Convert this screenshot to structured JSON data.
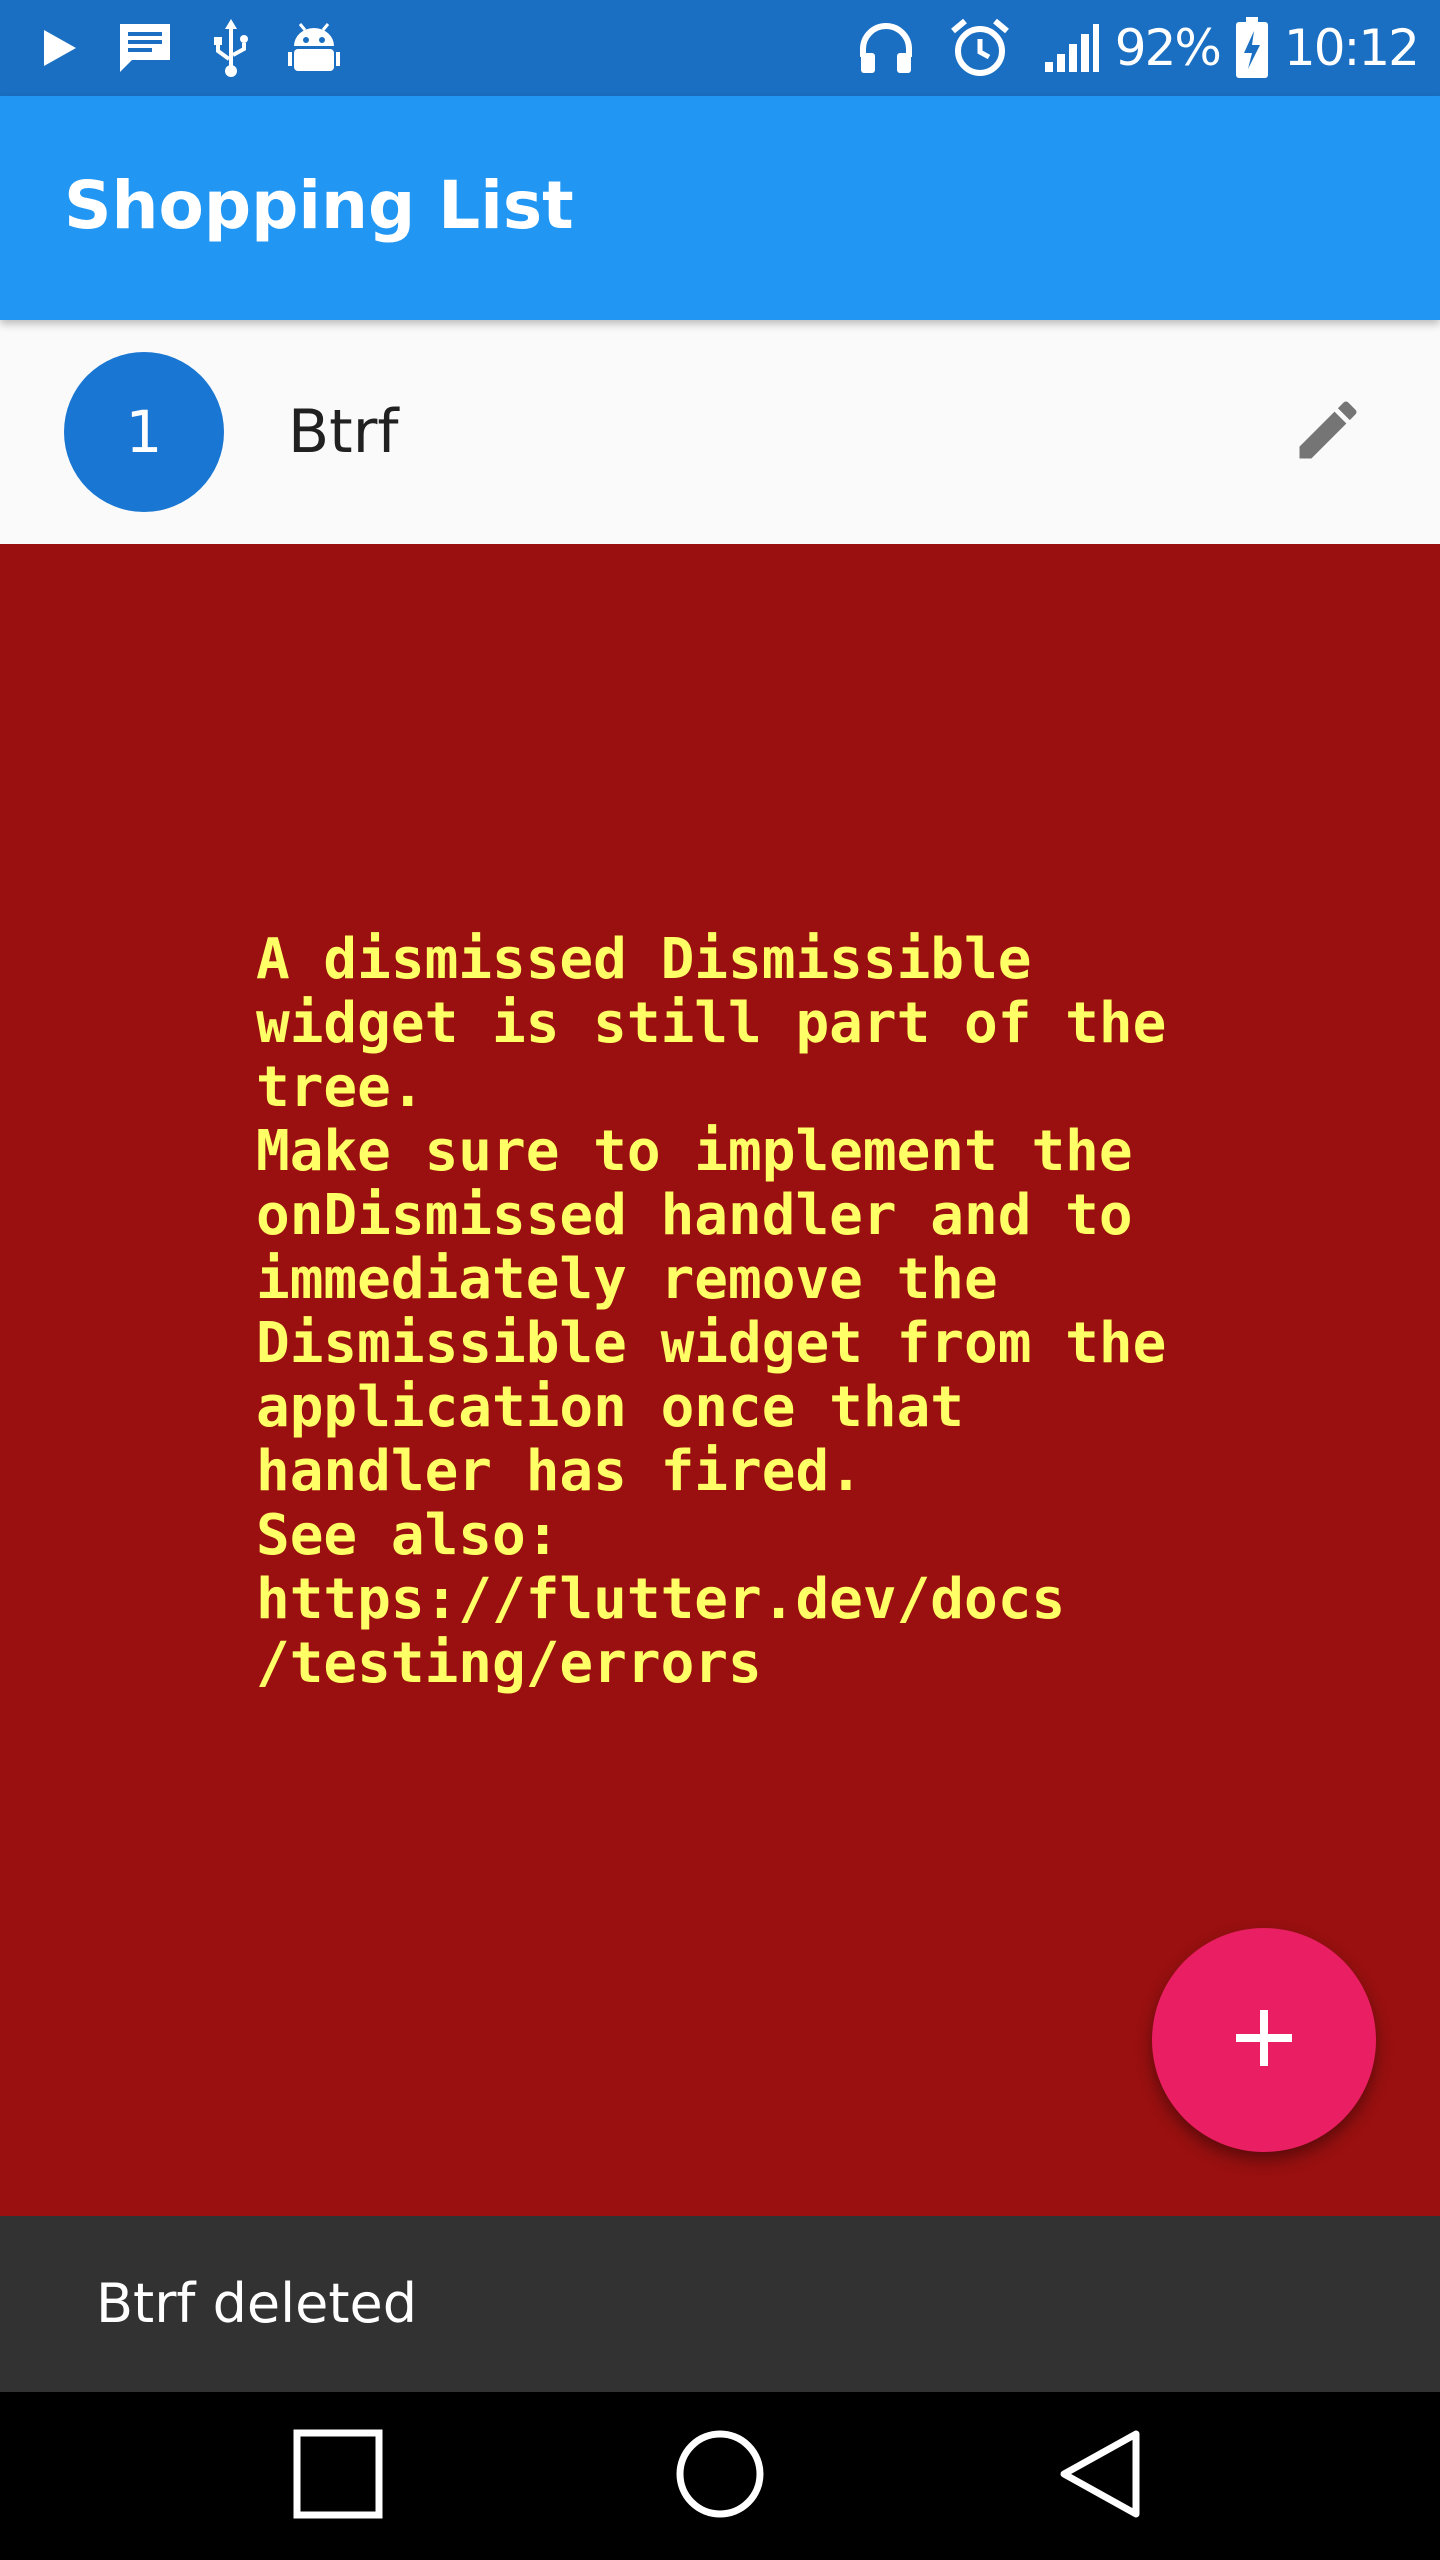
{
  "status_bar": {
    "left_icons": [
      "play-icon",
      "message-icon",
      "usb-icon",
      "android-debug-icon"
    ],
    "right_icons": [
      "headphones-icon",
      "alarm-icon",
      "signal-icon",
      "battery-charging-icon"
    ],
    "battery_percent": "92%",
    "time": "10:12"
  },
  "app_bar": {
    "title": "Shopping List",
    "color": "#2196f3"
  },
  "list": {
    "items": [
      {
        "index": "1",
        "title": "Btrf",
        "action_icon": "edit-icon"
      }
    ]
  },
  "error": {
    "background": "#9a1010",
    "text_color": "#ffff66",
    "message": "A dismissed Dismissible\nwidget is still part of the\ntree.\nMake sure to implement the\nonDismissed handler and to\nimmediately remove the\nDismissible widget from the\napplication once that\nhandler has fired.\nSee also:\nhttps://flutter.dev/docs\n/testing/errors"
  },
  "fab": {
    "icon": "plus-icon",
    "color": "#e91e63"
  },
  "snackbar": {
    "text": "Btrf deleted"
  },
  "nav_bar": {
    "buttons": [
      "recents-icon",
      "home-icon",
      "back-icon"
    ]
  }
}
